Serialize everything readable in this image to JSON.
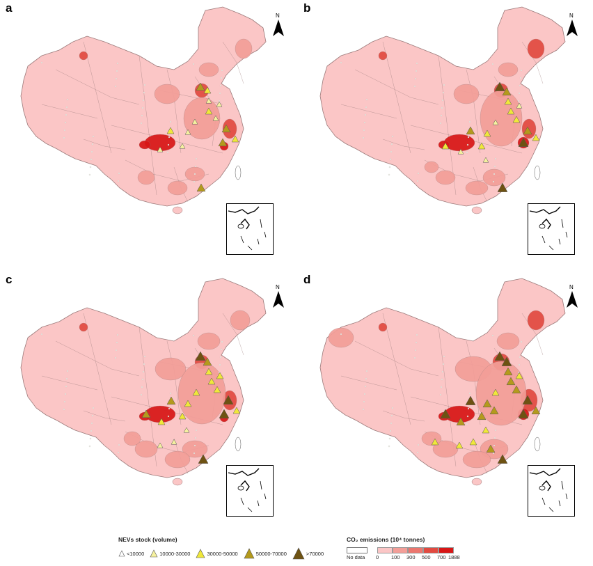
{
  "panels": [
    {
      "letter": "a",
      "north": "N"
    },
    {
      "letter": "b",
      "north": "N"
    },
    {
      "letter": "c",
      "north": "N"
    },
    {
      "letter": "d",
      "north": "N"
    }
  ],
  "legend_nev": {
    "title": "NEVs stock (volume)",
    "classes": [
      {
        "label": "<10000",
        "color": "#ffffff"
      },
      {
        "label": "10000-30000",
        "color": "#f6f2a0"
      },
      {
        "label": "30000-50000",
        "color": "#f0e83a"
      },
      {
        "label": "50000-70000",
        "color": "#b49a1c"
      },
      {
        "label": ">70000",
        "color": "#6e5212"
      }
    ]
  },
  "legend_co2": {
    "title": "CO₂ emissions (10⁴ tonnes)",
    "no_data": "No data",
    "breaks": [
      "0",
      "100",
      "300",
      "500",
      "700",
      "1888"
    ],
    "colors": [
      "#fbc6c6",
      "#f39e98",
      "#ec766e",
      "#e24a40",
      "#d81616"
    ]
  },
  "colors": {
    "base": "#fbc6c6",
    "mid": "#f39e98",
    "high": "#e24a40",
    "max": "#d81616",
    "border": "#9b7a7a"
  }
}
